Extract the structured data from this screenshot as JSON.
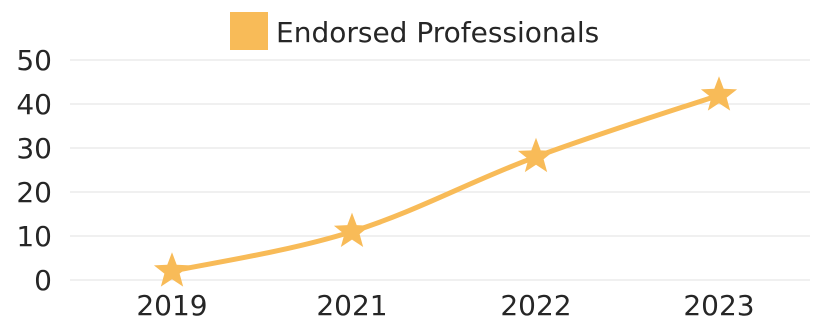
{
  "chart_data": {
    "type": "line",
    "x": [
      "2019",
      "2021",
      "2022",
      "2023"
    ],
    "series": [
      {
        "name": "Endorsed Professionals",
        "values": [
          2,
          11,
          28,
          42
        ],
        "color": "#f8bb58",
        "marker": "star",
        "smooth": true
      }
    ],
    "ylim": [
      0,
      50
    ],
    "yticks": [
      "0",
      "10",
      "20",
      "30",
      "40",
      "50"
    ],
    "grid": true,
    "legend": "top-center"
  }
}
